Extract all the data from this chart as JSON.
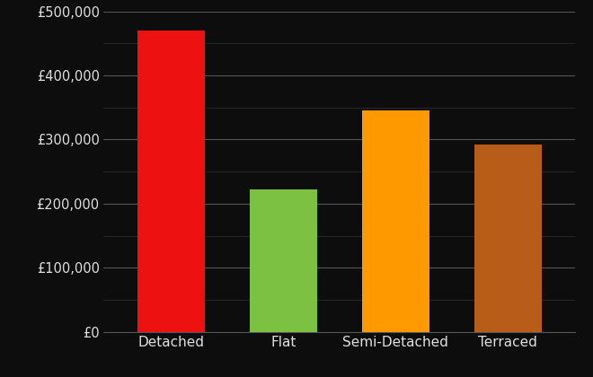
{
  "categories": [
    "Detached",
    "Flat",
    "Semi-Detached",
    "Terraced"
  ],
  "values": [
    470000,
    222000,
    345000,
    292000
  ],
  "bar_colors": [
    "#ee1111",
    "#7dc142",
    "#ff9900",
    "#b85c1a"
  ],
  "background_color": "#0d0d0d",
  "text_color": "#e0e0e0",
  "major_grid_color": "#555555",
  "minor_grid_color": "#333333",
  "ylim": [
    0,
    500000
  ],
  "ytick_major_step": 100000,
  "ytick_minor_step": 50000,
  "bar_width": 0.6,
  "tick_fontsize": 10.5,
  "label_fontsize": 11
}
